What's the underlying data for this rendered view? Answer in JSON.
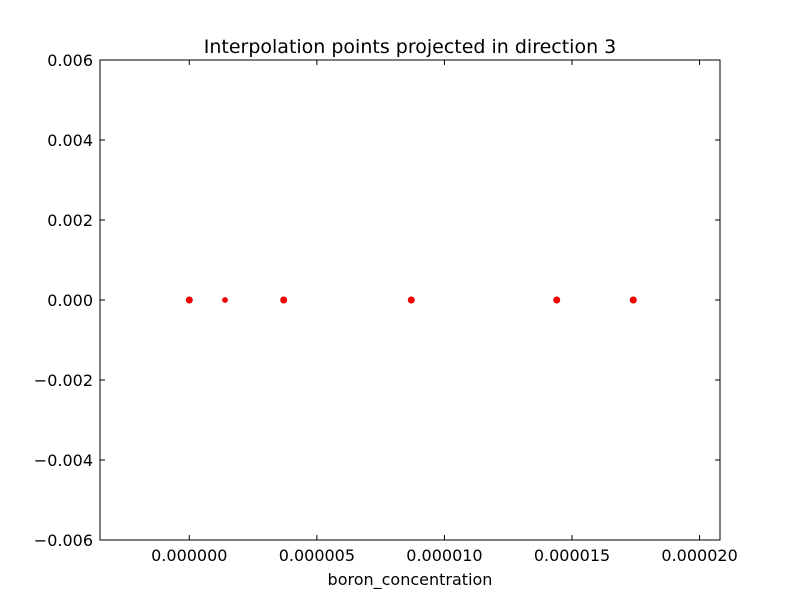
{
  "chart_data": {
    "type": "scatter",
    "title": "Interpolation points projected in direction 3",
    "xlabel": "boron_concentration",
    "ylabel": "",
    "xlim": [
      -3.5e-06,
      2.08e-05
    ],
    "ylim": [
      -0.006,
      0.006
    ],
    "x_ticks": [
      0.0,
      5e-06,
      1e-05,
      1.5e-05,
      2e-05
    ],
    "x_tick_labels": [
      "0.000000",
      "0.000005",
      "0.000010",
      "0.000015",
      "0.000020"
    ],
    "y_ticks": [
      -0.006,
      -0.004,
      -0.002,
      0.0,
      0.002,
      0.004,
      0.006
    ],
    "y_tick_labels": [
      "−0.006",
      "−0.004",
      "−0.002",
      "0.000",
      "0.002",
      "0.004",
      "0.006"
    ],
    "grid": false,
    "marker_color": "#ff0000",
    "series": [
      {
        "x": [
          0.0,
          1.4e-06,
          3.7e-06,
          8.7e-06,
          1.44e-05,
          1.74e-05
        ],
        "y": [
          0.0,
          0.0,
          0.0,
          0.0,
          0.0,
          0.0
        ]
      }
    ]
  }
}
